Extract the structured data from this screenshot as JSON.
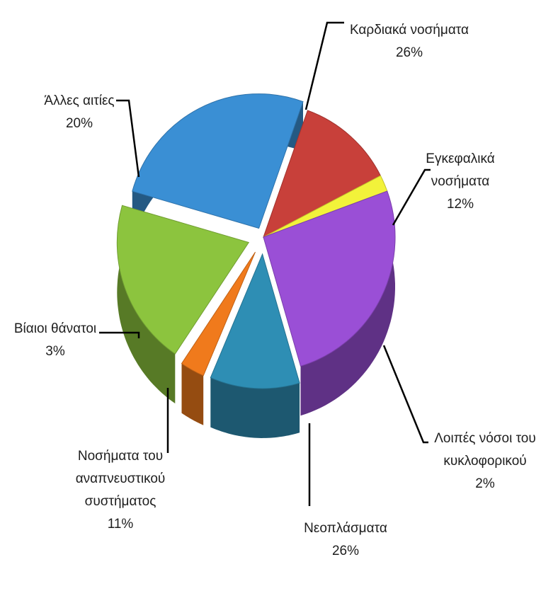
{
  "chart_data": {
    "type": "pie",
    "title": "",
    "slices": [
      {
        "name": "Καρδιακά νοσήματα",
        "value": 26,
        "percent_label": "26%",
        "color": "#3a8fd4"
      },
      {
        "name": "Εγκεφαλικά νοσήματα",
        "name_lines": [
          "Εγκεφαλικά",
          "νοσήματα"
        ],
        "value": 12,
        "percent_label": "12%",
        "color": "#c8403a"
      },
      {
        "name": "Λοιπές νόσοι του κυκλοφορικού",
        "name_lines": [
          "Λοιπές νόσοι του",
          "κυκλοφορικού"
        ],
        "value": 2,
        "percent_label": "2%",
        "color": "#f2f23a"
      },
      {
        "name": "Νεοπλάσματα",
        "value": 26,
        "percent_label": "26%",
        "color": "#9a4fd6"
      },
      {
        "name": "Νοσήματα του αναπνευστικού συστήματος",
        "name_lines": [
          "Νοσήματα του",
          "αναπνευστικού",
          "συστήματος"
        ],
        "value": 11,
        "percent_label": "11%",
        "color": "#2e8eb4"
      },
      {
        "name": "Βίαιοι θάνατοι",
        "value": 3,
        "percent_label": "3%",
        "color": "#f07a1c"
      },
      {
        "name": "Άλλες αιτίες",
        "value": 20,
        "percent_label": "20%",
        "color": "#8cc43e"
      }
    ],
    "legend": "none",
    "style": "3d-exploded"
  }
}
